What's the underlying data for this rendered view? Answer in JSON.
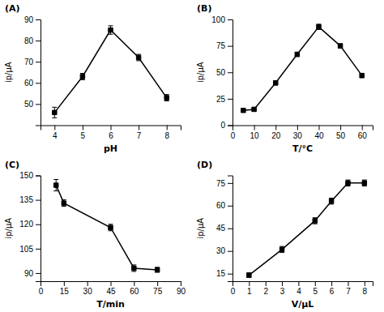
{
  "chart_data": [
    {
      "type": "line",
      "title": "(A)",
      "xlabel": "pH",
      "ylabel": "ip/μA",
      "x": [
        4,
        5,
        6,
        7,
        8
      ],
      "values": [
        46,
        63,
        85,
        72,
        53
      ],
      "yerr": [
        2.5,
        1.5,
        2,
        1.5,
        1.5
      ],
      "xlim": [
        3.5,
        8.5
      ],
      "xticks": [
        4,
        5,
        6,
        7,
        8
      ],
      "ylim": [
        40,
        90
      ],
      "yticks": [
        50,
        60,
        70,
        80,
        90
      ],
      "color": "#000000",
      "marker": "square",
      "grid": false
    },
    {
      "type": "line",
      "title": "(B)",
      "xlabel": "T/°C",
      "ylabel": "ip/μA",
      "x": [
        5,
        10,
        20,
        30,
        40,
        50,
        60
      ],
      "values": [
        14,
        15,
        40,
        67,
        93,
        75,
        47
      ],
      "yerr": [
        1.5,
        1.5,
        2,
        2,
        2.5,
        2,
        2
      ],
      "xlim": [
        0,
        65
      ],
      "xticks": [
        0,
        10,
        20,
        30,
        40,
        50,
        60
      ],
      "ylim": [
        0,
        100
      ],
      "yticks": [
        0,
        25,
        50,
        75,
        100
      ],
      "color": "#000000",
      "marker": "square",
      "grid": false
    },
    {
      "type": "line",
      "title": "(C)",
      "xlabel": "T/min",
      "ylabel": "ip/μA",
      "x": [
        10,
        15,
        45,
        60,
        75
      ],
      "values": [
        144,
        133,
        118,
        93,
        92
      ],
      "yerr": [
        3.5,
        2,
        2,
        2,
        1.5
      ],
      "xlim": [
        0,
        90
      ],
      "xticks": [
        0,
        15,
        30,
        45,
        60,
        75,
        90
      ],
      "ylim": [
        85,
        150
      ],
      "yticks": [
        90,
        105,
        120,
        135,
        150
      ],
      "color": "#000000",
      "marker": "square",
      "grid": false
    },
    {
      "type": "line",
      "title": "(D)",
      "xlabel": "V/μL",
      "ylabel": "ip/μA",
      "x": [
        1,
        3,
        5,
        6,
        7,
        8
      ],
      "values": [
        14,
        31,
        50,
        63,
        75,
        75
      ],
      "yerr": [
        1.5,
        2,
        2,
        2,
        2,
        2
      ],
      "xlim": [
        0,
        8.5
      ],
      "xticks": [
        0,
        1,
        2,
        3,
        4,
        5,
        6,
        7,
        8
      ],
      "ylim": [
        10,
        80
      ],
      "yticks": [
        15,
        30,
        45,
        60,
        75
      ],
      "color": "#000000",
      "marker": "square",
      "grid": false
    }
  ]
}
